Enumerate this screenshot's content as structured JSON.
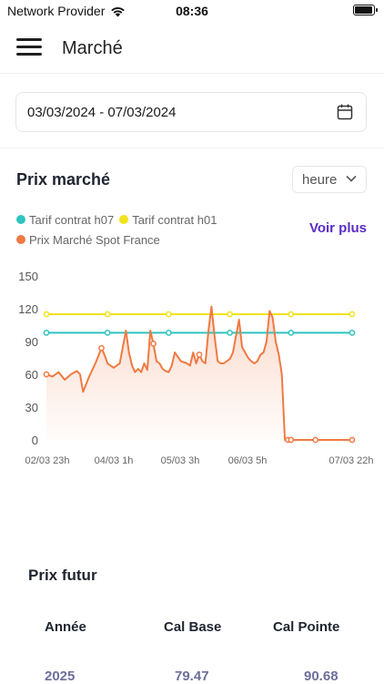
{
  "status_bar": {
    "carrier": "Network Provider",
    "time": "08:36",
    "battery_level": 1.0
  },
  "header": {
    "title": "Marché",
    "menu_icon": "hamburger-menu-icon"
  },
  "date_range": {
    "value": "03/03/2024 - 07/03/2024",
    "icon": "calendar-icon"
  },
  "market": {
    "title": "Prix marché",
    "granularity": "heure",
    "see_more": "Voir plus"
  },
  "chart_data": {
    "type": "line",
    "title": "",
    "xlabel": "",
    "ylabel": "",
    "ylim": [
      0,
      150
    ],
    "yticks": [
      "150",
      "120",
      "90",
      "60",
      "30",
      "0"
    ],
    "xticks": [
      "02/03 23h",
      "04/03 1h",
      "05/03 3h",
      "06/03 5h",
      "07/03 22h"
    ],
    "grid": false,
    "legend_placement": "top-left",
    "series": [
      {
        "name": "Tarif contrat h07",
        "color": "#2ec4c0",
        "x": [
          0,
          10,
          20,
          30,
          40,
          50,
          60,
          70,
          80,
          90,
          100
        ],
        "y": [
          98,
          98,
          98,
          98,
          98,
          98,
          98,
          98,
          98,
          98,
          98
        ]
      },
      {
        "name": "Tarif contrat h01",
        "color": "#f2e21b",
        "x": [
          0,
          10,
          20,
          30,
          40,
          50,
          60,
          70,
          80,
          90,
          100
        ],
        "y": [
          115,
          115,
          115,
          115,
          115,
          115,
          115,
          115,
          115,
          115,
          115
        ]
      },
      {
        "name": "Prix Marché Spot France",
        "color": "#f07a43",
        "x": [
          0,
          2,
          4,
          6,
          8,
          10,
          11,
          12,
          14,
          16,
          18,
          19,
          20,
          21,
          22,
          24,
          25,
          26,
          27,
          28,
          29,
          30,
          31,
          32,
          33,
          34,
          35,
          36,
          37,
          38,
          39,
          40,
          41,
          42,
          44,
          46,
          47,
          48,
          49,
          50,
          51,
          52,
          53,
          54,
          55,
          56,
          57,
          58,
          59,
          60,
          61,
          62,
          63,
          64,
          65,
          66,
          67,
          68,
          69,
          70,
          71,
          72,
          73,
          74,
          75,
          76,
          77,
          78,
          79,
          80,
          81,
          82,
          84,
          86,
          88,
          90,
          95,
          100
        ],
        "y": [
          60,
          58,
          62,
          55,
          60,
          63,
          60,
          44,
          58,
          70,
          84,
          78,
          70,
          68,
          66,
          70,
          85,
          100,
          80,
          68,
          62,
          65,
          62,
          70,
          64,
          100,
          88,
          72,
          70,
          65,
          63,
          62,
          68,
          80,
          72,
          70,
          68,
          80,
          70,
          78,
          72,
          70,
          100,
          122,
          95,
          72,
          70,
          70,
          72,
          74,
          80,
          95,
          110,
          85,
          80,
          75,
          72,
          70,
          72,
          78,
          80,
          90,
          118,
          112,
          90,
          78,
          60,
          0,
          0,
          0,
          0,
          0,
          0,
          0,
          0,
          0,
          0,
          0
        ]
      }
    ]
  },
  "futur": {
    "title": "Prix futur",
    "columns": [
      "Année",
      "Cal Base",
      "Cal Pointe"
    ],
    "rows": [
      [
        "2025",
        "79.47",
        "90.68"
      ]
    ]
  }
}
